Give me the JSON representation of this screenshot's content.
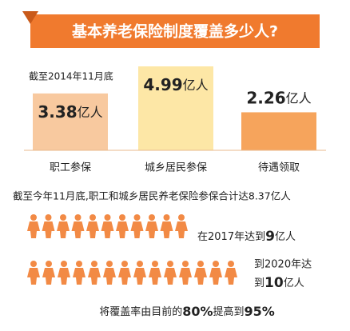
{
  "chart_data": {
    "type": "bar",
    "title": "基本养老保险制度覆盖多少人?",
    "note": "截至2014年11月底",
    "categories": [
      "职工参保",
      "城乡居民参保",
      "待遇领取"
    ],
    "values": [
      3.38,
      4.99,
      2.26
    ],
    "unit": "亿人",
    "colors": [
      "#f8c99f",
      "#fde7a6",
      "#f6a45c"
    ]
  },
  "summary": "截至今年11月底,职工和城乡居民养老保险参保合计达8.37亿人",
  "target_2017": {
    "prefix": "在2017年达到",
    "number": "9",
    "unit": "亿人"
  },
  "target_2020": {
    "line1": "到2020年达",
    "prefix": "到",
    "number": "10",
    "unit": "亿人"
  },
  "coverage": {
    "prefix": "将覆盖率由目前的",
    "from": "80%",
    "middle": "提高到",
    "to": "95%"
  }
}
